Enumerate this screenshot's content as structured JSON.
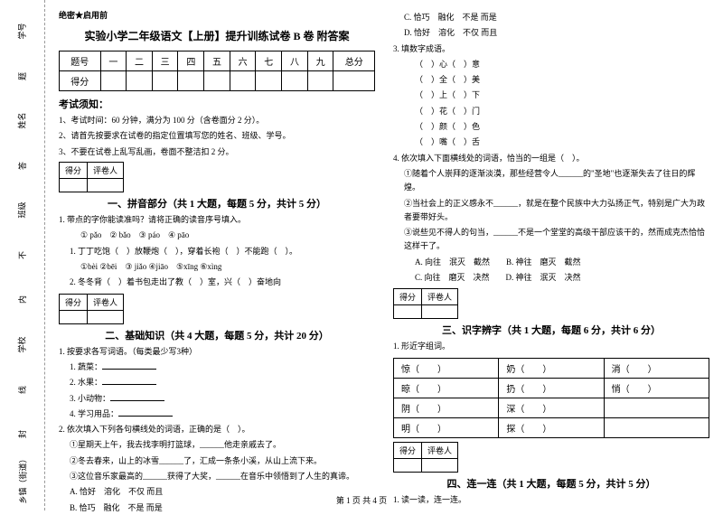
{
  "binding": {
    "items": [
      "乡镇（街道）",
      "学校",
      "班级",
      "姓名",
      "学号"
    ],
    "marks": [
      "密",
      "封",
      "线",
      "内",
      "不",
      "准",
      "答",
      "题"
    ]
  },
  "confidential": "绝密★启用前",
  "title": "实验小学二年级语文【上册】提升训练试卷 B 卷 附答案",
  "scoreTable": {
    "headers": [
      "题号",
      "一",
      "二",
      "三",
      "四",
      "五",
      "六",
      "七",
      "八",
      "九",
      "总分"
    ],
    "row2": "得分"
  },
  "examNotice": {
    "title": "考试须知：",
    "items": [
      "1、考试时间：60 分钟，满分为 100 分（含卷面分 2 分）。",
      "2、请首先按要求在试卷的指定位置填写您的姓名、班级、学号。",
      "3、不要在试卷上乱写乱画，卷面不整洁扣 2 分。"
    ]
  },
  "miniTable": {
    "c1": "得分",
    "c2": "评卷人"
  },
  "section1": {
    "title": "一、拼音部分（共 1 大题，每题 5 分，共计 5 分）",
    "q1": "1. 带点的字你能读准吗？请将正确的读音序号填入。",
    "opts1": "① pǎo　② bǎo　③ páo　④ pāo",
    "line1": "1. 丁丁吃饱（　）放鞭炮（　），穿着长袍（　）不能跑（　）。",
    "opts2": "①bèi ②bēi　③ jiǎo ④jiāo　⑤xīng ⑥xìng",
    "line2": "2. 冬冬背（　）着书包走出了教（　）室，兴（　）奋地向"
  },
  "section2": {
    "title": "二、基础知识（共 4 大题，每题 5 分，共计 20 分）",
    "q1": "1. 按要求各写词语。（每类最少写3种）",
    "items": [
      "1. 蔬菜：",
      "2. 水果：",
      "3. 小动物：",
      "4. 学习用品："
    ],
    "q2": "2. 依次填入下列各句横线处的词语，正确的是（　）。",
    "lines": [
      "①星期天上午，我去找李明打篮球，______他走亲戚去了。",
      "②冬去春来，山上的冰雪______了，汇成一条条小溪，从山上流下来。",
      "③这位音乐家最高的______获得了大奖，______在音乐中领悟到了人生的真谛。"
    ],
    "choices": [
      "A. 恰好　溶化　不仅 而且",
      "B. 恰巧　融化　不是 而是"
    ]
  },
  "rightCol": {
    "choices": [
      "C. 恰巧　融化　不是 而是",
      "D. 恰好　溶化　不仅 而且"
    ],
    "q3": "3. 填数字成语。",
    "idioms": [
      "（　）心（　）意",
      "（　）全（　）美",
      "（　）上（　）下",
      "（　）花（　）门",
      "（　）颜（　）色",
      "（　）嘴（　）舌"
    ],
    "q4": "4. 依次填入下面横线处的词语，恰当的一组是（　）。",
    "q4lines": [
      "①随着个人崇拜的逐渐淡漠，那些经营令人______的\"圣地\"也逐渐失去了往日的辉煌。",
      "②当社会上的正义感永不______，就是在整个民族中大力弘扬正气，特别是广大为政者要带好头。",
      "③说些见不得人的句当，______不是一个堂堂的高级干部应该干的，然而成克杰恰恰这样干了。"
    ],
    "q4choices": [
      "A. 向往　泯灭　截然",
      "B. 神往　磨灭　截然",
      "C. 向往　磨灭　决然",
      "D. 神往　泯灭　决然"
    ]
  },
  "section3": {
    "title": "三、识字辨字（共 1 大题，每题 6 分，共计 6 分）",
    "q1": "1. 形近字组词。",
    "rows": [
      [
        "惊（　　）",
        "奶（　　）",
        "消（　　）"
      ],
      [
        "晾（　　）",
        "扔（　　）",
        "悄（　　）"
      ],
      [
        "阴（　　）",
        "深（　　）",
        "　"
      ],
      [
        "明（　　）",
        "探（　　）",
        "　"
      ]
    ]
  },
  "section4": {
    "title": "四、连一连（共 1 大题，每题 5 分，共计 5 分）",
    "q1": "1. 读一读，连一连。"
  },
  "footer": "第 1 页 共 4 页"
}
